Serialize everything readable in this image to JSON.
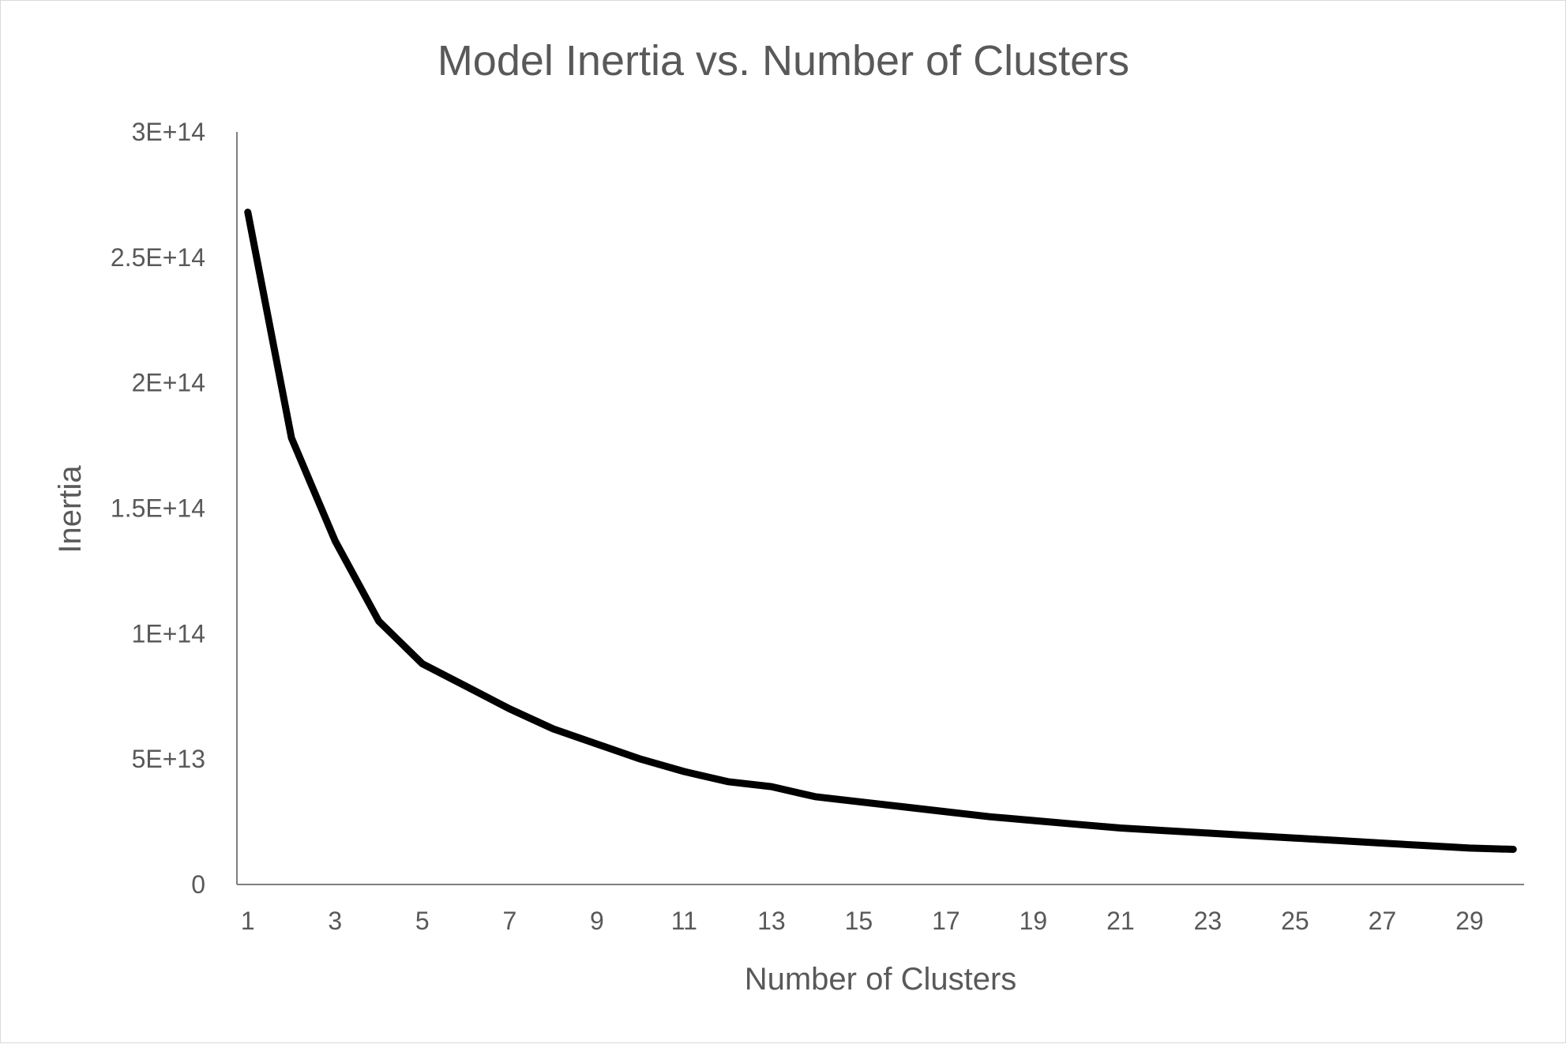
{
  "chart_data": {
    "type": "line",
    "title": "Model Inertia vs. Number of Clusters",
    "xlabel": "Number of Clusters",
    "ylabel": "Inertia",
    "x": [
      1,
      2,
      3,
      4,
      5,
      6,
      7,
      8,
      9,
      10,
      11,
      12,
      13,
      14,
      15,
      16,
      17,
      18,
      19,
      20,
      21,
      22,
      23,
      24,
      25,
      26,
      27,
      28,
      29,
      30
    ],
    "x_tick_labels": [
      "1",
      "3",
      "5",
      "7",
      "9",
      "11",
      "13",
      "15",
      "17",
      "19",
      "21",
      "23",
      "25",
      "27",
      "29"
    ],
    "y_tick_labels": [
      "0",
      "5E+13",
      "1E+14",
      "1.5E+14",
      "2E+14",
      "2.5E+14",
      "3E+14"
    ],
    "y_tick_values": [
      0,
      50000000000000,
      100000000000000,
      150000000000000,
      200000000000000,
      250000000000000,
      300000000000000
    ],
    "ylim": [
      0,
      300000000000000
    ],
    "series": [
      {
        "color": "#000000",
        "values": [
          268000000000000,
          178000000000000,
          137000000000000,
          105000000000000,
          88000000000000,
          79000000000000,
          70000000000000,
          62000000000000,
          56000000000000,
          50000000000000,
          45000000000000,
          41000000000000,
          39000000000000,
          35000000000000,
          33000000000000,
          31000000000000,
          29000000000000,
          27000000000000,
          25500000000000,
          24000000000000,
          22500000000000,
          21500000000000,
          20500000000000,
          19500000000000,
          18500000000000,
          17500000000000,
          16500000000000,
          15500000000000,
          14500000000000,
          14000000000000
        ]
      }
    ],
    "grid": false,
    "legend": "none",
    "axis_color": "#7f7f7f",
    "text_color": "#595959"
  }
}
